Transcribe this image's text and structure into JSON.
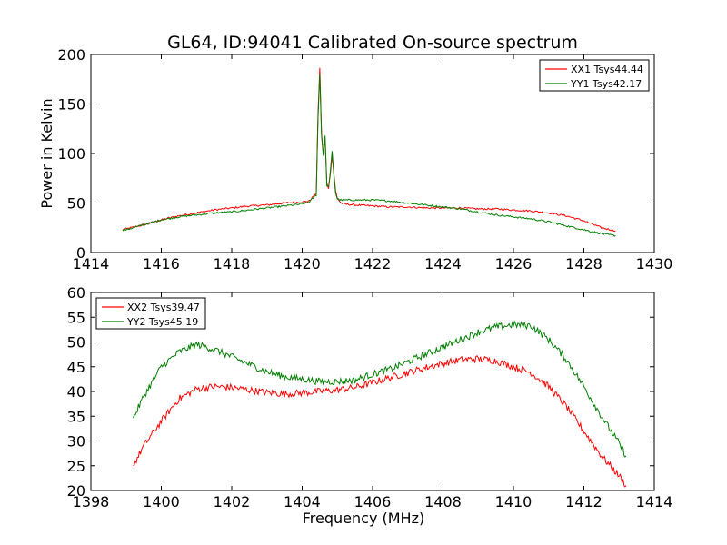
{
  "figure": {
    "title": "GL64, ID:94041 Calibrated On-source spectrum"
  },
  "chart_data": [
    {
      "type": "line",
      "title": "GL64, ID:94041 Calibrated On-source spectrum",
      "xlabel": "",
      "ylabel": "Power in Kelvin",
      "xlim": [
        1414,
        1430
      ],
      "ylim": [
        0,
        200
      ],
      "x_ticks": [
        "1414",
        "1416",
        "1418",
        "1420",
        "1422",
        "1424",
        "1426",
        "1428",
        "1430"
      ],
      "y_ticks": [
        "0",
        "50",
        "100",
        "150",
        "200"
      ],
      "legend_position": "top-right",
      "grid": false,
      "series": [
        {
          "name": "XX1 Tsys44.44",
          "color": "#ff0000",
          "x": [
            1414.9,
            1415.5,
            1416.0,
            1416.5,
            1417.0,
            1417.5,
            1418.0,
            1418.5,
            1419.0,
            1419.5,
            1420.0,
            1420.2,
            1420.4,
            1420.45,
            1420.5,
            1420.55,
            1420.6,
            1420.65,
            1420.7,
            1420.75,
            1420.8,
            1420.85,
            1420.9,
            1420.95,
            1421.0,
            1421.1,
            1421.2,
            1421.5,
            1422.0,
            1422.5,
            1423.0,
            1423.5,
            1424.0,
            1424.5,
            1425.0,
            1425.5,
            1426.0,
            1426.5,
            1427.0,
            1427.5,
            1428.0,
            1428.5,
            1428.9
          ],
          "values": [
            23,
            28,
            33,
            37,
            40,
            43,
            45,
            47,
            48,
            50,
            51,
            52,
            60,
            140,
            186,
            120,
            100,
            115,
            70,
            65,
            80,
            98,
            80,
            62,
            55,
            50,
            49,
            48,
            47,
            46,
            46,
            45,
            45,
            45,
            44,
            44,
            43,
            42,
            40,
            37,
            32,
            25,
            22
          ]
        },
        {
          "name": "YY1 Tsys42.17",
          "color": "#008000",
          "x": [
            1414.9,
            1415.5,
            1416.0,
            1416.5,
            1417.0,
            1417.5,
            1418.0,
            1418.5,
            1419.0,
            1419.5,
            1420.0,
            1420.2,
            1420.4,
            1420.45,
            1420.5,
            1420.55,
            1420.6,
            1420.65,
            1420.7,
            1420.75,
            1420.8,
            1420.85,
            1420.9,
            1420.95,
            1421.0,
            1421.1,
            1421.2,
            1421.5,
            1422.0,
            1422.5,
            1423.0,
            1423.5,
            1424.0,
            1424.5,
            1425.0,
            1425.5,
            1426.0,
            1426.5,
            1427.0,
            1427.5,
            1428.0,
            1428.5,
            1428.9
          ],
          "values": [
            22,
            28,
            33,
            36,
            38,
            40,
            41,
            43,
            45,
            47,
            49,
            51,
            58,
            135,
            180,
            118,
            98,
            118,
            68,
            66,
            82,
            102,
            78,
            60,
            54,
            53,
            53,
            53,
            53,
            52,
            50,
            48,
            46,
            44,
            41,
            38,
            36,
            34,
            31,
            27,
            23,
            19,
            17
          ]
        }
      ]
    },
    {
      "type": "line",
      "title": "",
      "xlabel": "Frequency (MHz)",
      "ylabel": "",
      "xlim": [
        1398,
        1414
      ],
      "ylim": [
        20,
        60
      ],
      "x_ticks": [
        "1398",
        "1400",
        "1402",
        "1404",
        "1406",
        "1408",
        "1410",
        "1412",
        "1414"
      ],
      "y_ticks": [
        "20",
        "25",
        "30",
        "35",
        "40",
        "45",
        "50",
        "55",
        "60"
      ],
      "legend_position": "top-left",
      "grid": false,
      "series": [
        {
          "name": "XX2 Tsys39.47",
          "color": "#ff0000",
          "x": [
            1399.2,
            1399.5,
            1400.0,
            1400.5,
            1401.0,
            1401.5,
            1402.0,
            1402.5,
            1403.0,
            1403.5,
            1404.0,
            1404.5,
            1405.0,
            1405.5,
            1406.0,
            1406.5,
            1407.0,
            1407.5,
            1408.0,
            1408.5,
            1409.0,
            1409.5,
            1410.0,
            1410.5,
            1411.0,
            1411.5,
            1412.0,
            1412.5,
            1413.0,
            1413.2
          ],
          "values": [
            25,
            29,
            34,
            38.5,
            40.5,
            41,
            40.8,
            40.3,
            39.8,
            39.5,
            39.7,
            40,
            40.3,
            40.8,
            41.8,
            42.8,
            43.8,
            44.8,
            45.7,
            46.4,
            46.6,
            46.2,
            45,
            43.8,
            41,
            37,
            32,
            27,
            23,
            21
          ]
        },
        {
          "name": "YY2 Tsys45.19",
          "color": "#008000",
          "x": [
            1399.2,
            1399.5,
            1400.0,
            1400.5,
            1401.0,
            1401.5,
            1402.0,
            1402.5,
            1403.0,
            1403.5,
            1404.0,
            1404.5,
            1405.0,
            1405.5,
            1406.0,
            1406.5,
            1407.0,
            1407.5,
            1408.0,
            1408.5,
            1409.0,
            1409.5,
            1410.0,
            1410.5,
            1411.0,
            1411.5,
            1412.0,
            1412.5,
            1413.0,
            1413.2
          ],
          "values": [
            34.5,
            39,
            45,
            48,
            49.5,
            48.5,
            47,
            45.5,
            44,
            43,
            42.5,
            42,
            42,
            42.3,
            43.5,
            44.5,
            46,
            47.5,
            49,
            50.5,
            52,
            53,
            53.5,
            53.3,
            50.5,
            46.5,
            41,
            35,
            29.5,
            27
          ]
        }
      ]
    }
  ]
}
